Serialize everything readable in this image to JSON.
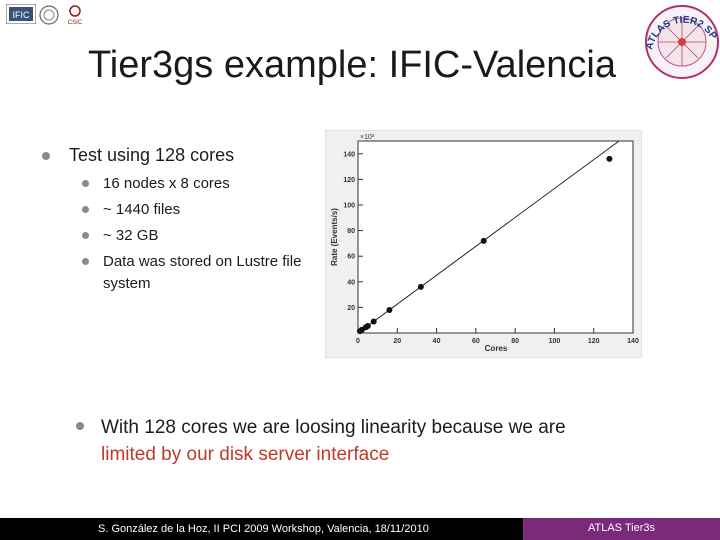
{
  "header": {
    "title": "Tier3gs example: IFIC-Valencia",
    "logos": {
      "ific": "IFIC",
      "csic": "CSIC",
      "atlas_tier2": "ATLAS TIER2 SPAIN"
    }
  },
  "main": {
    "bullet": "Test using 128 cores",
    "sub_bullets": [
      "16 nodes x 8 cores",
      "~ 1440 files",
      "~ 32 GB",
      "Data was stored on Lustre file",
      "system"
    ],
    "conclusion_line1": "With 128 cores we are loosing linearity because we are",
    "conclusion_line2": "limited by our disk server interface"
  },
  "chart_data": {
    "type": "scatter",
    "title": "",
    "xlabel": "Cores",
    "ylabel": "Rate (Events/s)",
    "y_multiplier": "×10³",
    "xlim": [
      0,
      140
    ],
    "ylim": [
      0,
      150
    ],
    "xticks": [
      0,
      20,
      40,
      60,
      80,
      100,
      120,
      140
    ],
    "yticks": [
      20,
      40,
      60,
      80,
      100,
      120,
      140
    ],
    "points": {
      "x": [
        1,
        2,
        4,
        5,
        8,
        16,
        32,
        64,
        128
      ],
      "y": [
        1.5,
        2.5,
        4.5,
        5.5,
        9,
        18,
        36,
        72,
        136
      ]
    },
    "fit_line": {
      "x": [
        0,
        140
      ],
      "y": [
        0,
        158
      ]
    },
    "colors": {
      "background": "#f0f0f0",
      "point": "#111111",
      "line": "#222222"
    }
  },
  "footer": {
    "left": "S. González de la Hoz, II PCI 2009 Workshop, Valencia, 18/11/2010",
    "right": "ATLAS Tier3s",
    "colors": {
      "bar": "#000000",
      "accent": "#7b2a7b"
    }
  }
}
